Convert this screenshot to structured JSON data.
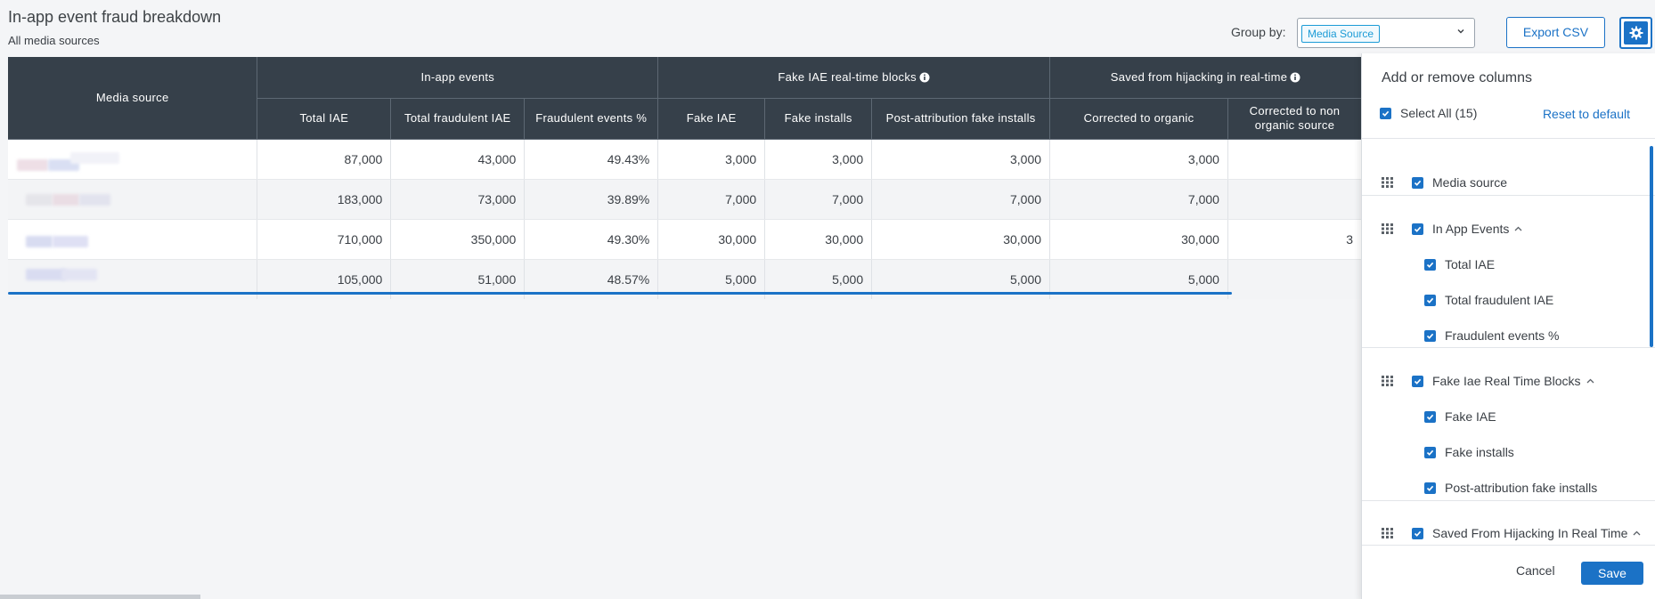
{
  "header": {
    "title": "In-app event fraud breakdown",
    "subtitle": "All media sources"
  },
  "toolbar": {
    "group_by_label": "Group by:",
    "group_by_value": "Media Source",
    "export_label": "Export CSV"
  },
  "table": {
    "media_source_header": "Media source",
    "groups": [
      {
        "label": "In-app events"
      },
      {
        "label": "Fake IAE real-time blocks"
      },
      {
        "label": "Saved from hijacking in real-time"
      }
    ],
    "columns": [
      "Total IAE",
      "Total fraudulent IAE",
      "Fraudulent events %",
      "Fake IAE",
      "Fake installs",
      "Post-attribution fake installs",
      "Corrected to organic",
      "Corrected to non organic source"
    ],
    "rows": [
      {
        "cells": [
          "87,000",
          "43,000",
          "49.43%",
          "3,000",
          "3,000",
          "3,000",
          "3,000",
          ""
        ]
      },
      {
        "cells": [
          "183,000",
          "73,000",
          "39.89%",
          "7,000",
          "7,000",
          "7,000",
          "7,000",
          ""
        ]
      },
      {
        "cells": [
          "710,000",
          "350,000",
          "49.30%",
          "30,000",
          "30,000",
          "30,000",
          "30,000",
          "3"
        ]
      },
      {
        "cells": [
          "105,000",
          "51,000",
          "48.57%",
          "5,000",
          "5,000",
          "5,000",
          "5,000",
          ""
        ]
      }
    ]
  },
  "panel": {
    "title": "Add or remove columns",
    "select_all": "Select All (15)",
    "reset": "Reset to default",
    "items": [
      {
        "label": "Media source",
        "level": 0
      },
      {
        "label": "In App Events",
        "level": 0
      },
      {
        "label": "Total IAE",
        "level": 1
      },
      {
        "label": "Total fraudulent IAE",
        "level": 1
      },
      {
        "label": "Fraudulent events %",
        "level": 1
      },
      {
        "label": "Fake Iae Real Time Blocks",
        "level": 0
      },
      {
        "label": "Fake IAE",
        "level": 1
      },
      {
        "label": "Fake installs",
        "level": 1
      },
      {
        "label": "Post-attribution fake installs",
        "level": 1
      },
      {
        "label": "Saved From Hijacking In Real Time",
        "level": 0
      }
    ],
    "cancel_label": "Cancel",
    "save_label": "Save"
  },
  "colors": {
    "accent": "#1b72c6",
    "chip": "#1b9bd6",
    "header_bg": "#36404a"
  },
  "icons": [
    "gear-icon",
    "chevron-down-icon",
    "info-icon",
    "grip-icon",
    "checkbox-checked-icon",
    "caret-up-icon"
  ]
}
